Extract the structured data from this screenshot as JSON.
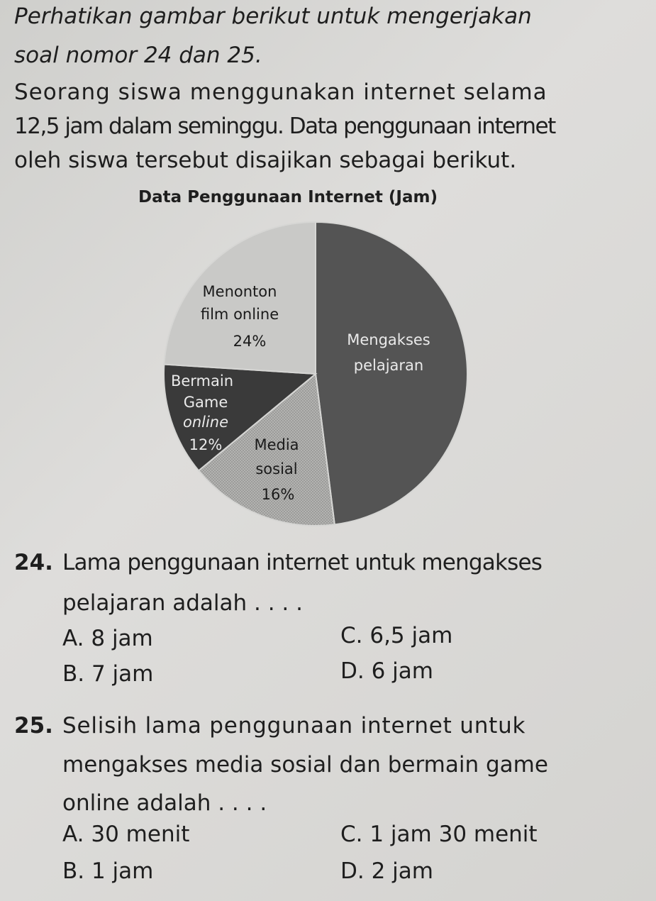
{
  "intro": {
    "line1": "Perhatikan gambar berikut untuk mengerjakan",
    "line2": "soal nomor 24 dan 25."
  },
  "context": {
    "line1": "Seorang siswa menggunakan internet selama",
    "line2": "12,5 jam dalam seminggu. Data penggunaan internet",
    "line3": "oleh siswa tersebut disajikan sebagai berikut."
  },
  "chart_data": {
    "type": "pie",
    "title": "Data Penggunaan Internet (Jam)",
    "slices": [
      {
        "label": "Mengakses pelajaran",
        "value": 48,
        "value_label": "",
        "color": "#545454"
      },
      {
        "label": "Media sosial",
        "value": 16,
        "value_label": "16%",
        "color": "#a9a9a7"
      },
      {
        "label": "Bermain Game online",
        "value": 12,
        "value_label": "12%",
        "color": "#3a3a3a"
      },
      {
        "label": "Menonton film online",
        "value": 24,
        "value_label": "24%",
        "color": "#c9c9c7"
      }
    ],
    "label_lines": {
      "menonton": [
        "Menonton",
        "film online",
        "24%"
      ],
      "mengakses": [
        "Mengakses",
        "pelajaran"
      ],
      "bermain": [
        "Bermain",
        "Game",
        "online",
        "12%"
      ],
      "media": [
        "Media",
        "sosial",
        "16%"
      ]
    }
  },
  "q24": {
    "number": "24.",
    "line1": "Lama penggunaan internet untuk mengakses",
    "line2": "pelajaran adalah . . . .",
    "options": {
      "A": "A.  8 jam",
      "B": "B.  7 jam",
      "C": "C.  6,5 jam",
      "D": "D.  6 jam"
    }
  },
  "q25": {
    "number": "25.",
    "line1": "Selisih lama penggunaan internet untuk",
    "line2": "mengakses media sosial dan bermain game",
    "line3": "online adalah . . . .",
    "options": {
      "A": "A.  30 menit",
      "B": "B.  1 jam",
      "C": "C.  1 jam 30 menit",
      "D": "D.  2 jam"
    }
  }
}
